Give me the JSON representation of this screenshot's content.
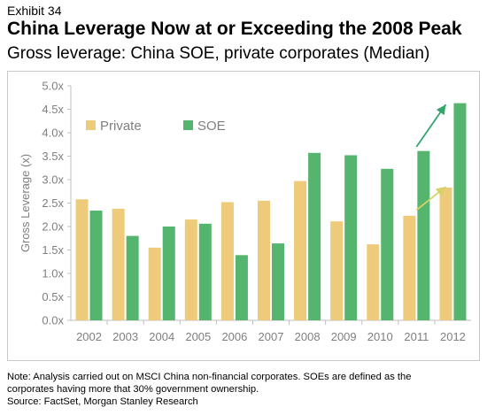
{
  "header": {
    "exhibit": "Exhibit 34",
    "title": "China Leverage Now at or Exceeding the 2008 Peak",
    "subtitle": "Gross leverage: China SOE, private corporates (Median)"
  },
  "footer": {
    "note": "Note: Analysis carried out on MSCI China non-financial corporates. SOEs are defined as the corporates having more that 30% government ownership.",
    "source": "Source: FactSet, Morgan Stanley Research"
  },
  "colors": {
    "private": "#eecb7b",
    "soe": "#55b46d",
    "arrow_private": "#d8d16a",
    "arrow_soe": "#35a46a",
    "axis": "#bfbfbf"
  },
  "chart_data": {
    "type": "bar",
    "categories": [
      "2002",
      "2003",
      "2004",
      "2005",
      "2006",
      "2007",
      "2008",
      "2009",
      "2010",
      "2011",
      "2012"
    ],
    "series": [
      {
        "name": "Private",
        "values": [
          2.58,
          2.38,
          1.55,
          2.15,
          2.52,
          2.55,
          2.97,
          2.11,
          1.62,
          2.23,
          2.83
        ]
      },
      {
        "name": "SOE",
        "values": [
          2.34,
          1.8,
          2.0,
          2.06,
          1.39,
          1.64,
          3.57,
          3.52,
          3.23,
          3.61,
          4.63
        ]
      }
    ],
    "ylabel": "Gross Leverage (x)",
    "xlabel": "",
    "ylim": [
      0,
      5
    ],
    "yticks": [
      "0.0x",
      "0.5x",
      "1.0x",
      "1.5x",
      "2.0x",
      "2.5x",
      "3.0x",
      "3.5x",
      "4.0x",
      "4.5x",
      "5.0x"
    ],
    "legend_position": "top-left",
    "grid": false,
    "annotations": [
      {
        "type": "arrow",
        "series": "Private",
        "from": [
          "2011",
          2.35
        ],
        "to": [
          "2012",
          2.85
        ]
      },
      {
        "type": "arrow",
        "series": "SOE",
        "from": [
          "2011",
          3.7
        ],
        "to": [
          "2012",
          4.6
        ]
      }
    ]
  }
}
